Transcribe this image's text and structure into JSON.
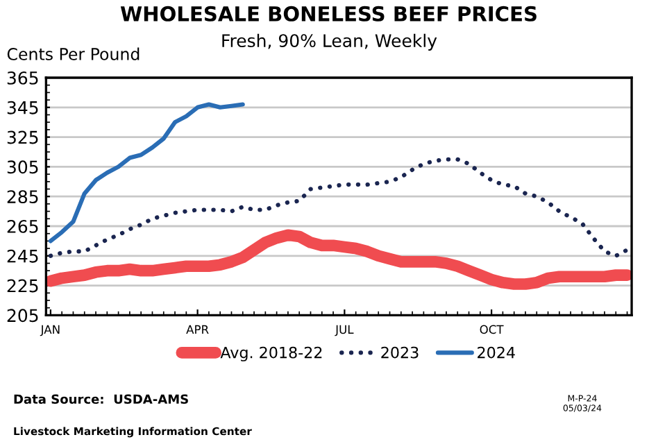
{
  "chart_data": {
    "type": "line",
    "title": "WHOLESALE BONELESS BEEF PRICES",
    "subtitle": "Fresh, 90% Lean, Weekly",
    "ylabel": "Cents Per Pound",
    "categories": [
      "JAN",
      null,
      null,
      null,
      null,
      null,
      null,
      null,
      null,
      null,
      null,
      null,
      null,
      "APR",
      null,
      null,
      null,
      null,
      null,
      null,
      null,
      null,
      null,
      null,
      null,
      null,
      "JUL",
      null,
      null,
      null,
      null,
      null,
      null,
      null,
      null,
      null,
      null,
      null,
      null,
      "OCT",
      null,
      null,
      null,
      null,
      null,
      null,
      null,
      null,
      null,
      null,
      null,
      null
    ],
    "series": [
      {
        "name": "Avg. 2018-22",
        "color": "#f04c50",
        "line_style": "solid",
        "values": [
          228,
          230,
          231,
          232,
          234,
          235,
          235,
          236,
          235,
          235,
          236,
          237,
          238,
          238,
          238,
          239,
          241,
          244,
          249,
          254,
          257,
          259,
          258,
          254,
          252,
          252,
          251,
          250,
          248,
          245,
          243,
          241,
          241,
          241,
          241,
          240,
          238,
          235,
          232,
          229,
          227,
          226,
          226,
          227,
          230,
          231,
          231,
          231,
          231,
          231,
          232,
          232
        ]
      },
      {
        "name": "2023",
        "color": "#1a2550",
        "line_style": "dotted",
        "values": [
          245,
          247,
          248,
          248,
          252,
          256,
          259,
          263,
          266,
          270,
          272,
          274,
          275,
          276,
          276,
          276,
          275,
          278,
          276,
          276,
          279,
          281,
          282,
          290,
          291,
          292,
          293,
          293,
          293,
          294,
          295,
          298,
          303,
          307,
          309,
          310,
          310,
          307,
          301,
          296,
          293,
          292,
          287,
          285,
          281,
          275,
          271,
          267,
          257,
          248,
          245,
          249
        ]
      },
      {
        "name": "2024",
        "color": "#2a6db5",
        "line_style": "solid",
        "values": [
          255,
          261,
          268,
          287,
          296,
          301,
          305,
          311,
          313,
          318,
          324,
          335,
          339,
          345,
          347,
          345,
          346,
          347,
          null,
          null,
          null,
          null,
          null,
          null,
          null,
          null,
          null,
          null,
          null,
          null,
          null,
          null,
          null,
          null,
          null,
          null,
          null,
          null,
          null,
          null,
          null,
          null,
          null,
          null,
          null,
          null,
          null,
          null,
          null,
          null,
          null,
          null
        ]
      }
    ],
    "ylim": [
      205,
      365
    ],
    "yticks": [
      205,
      225,
      245,
      265,
      285,
      305,
      325,
      345,
      365
    ],
    "grid": "y",
    "legend": "bottom",
    "marker": "none",
    "annotations": [
      "Data Source:  USDA-AMS",
      "Livestock Marketing Information Center",
      "M-P-24\n05/03/24"
    ]
  }
}
